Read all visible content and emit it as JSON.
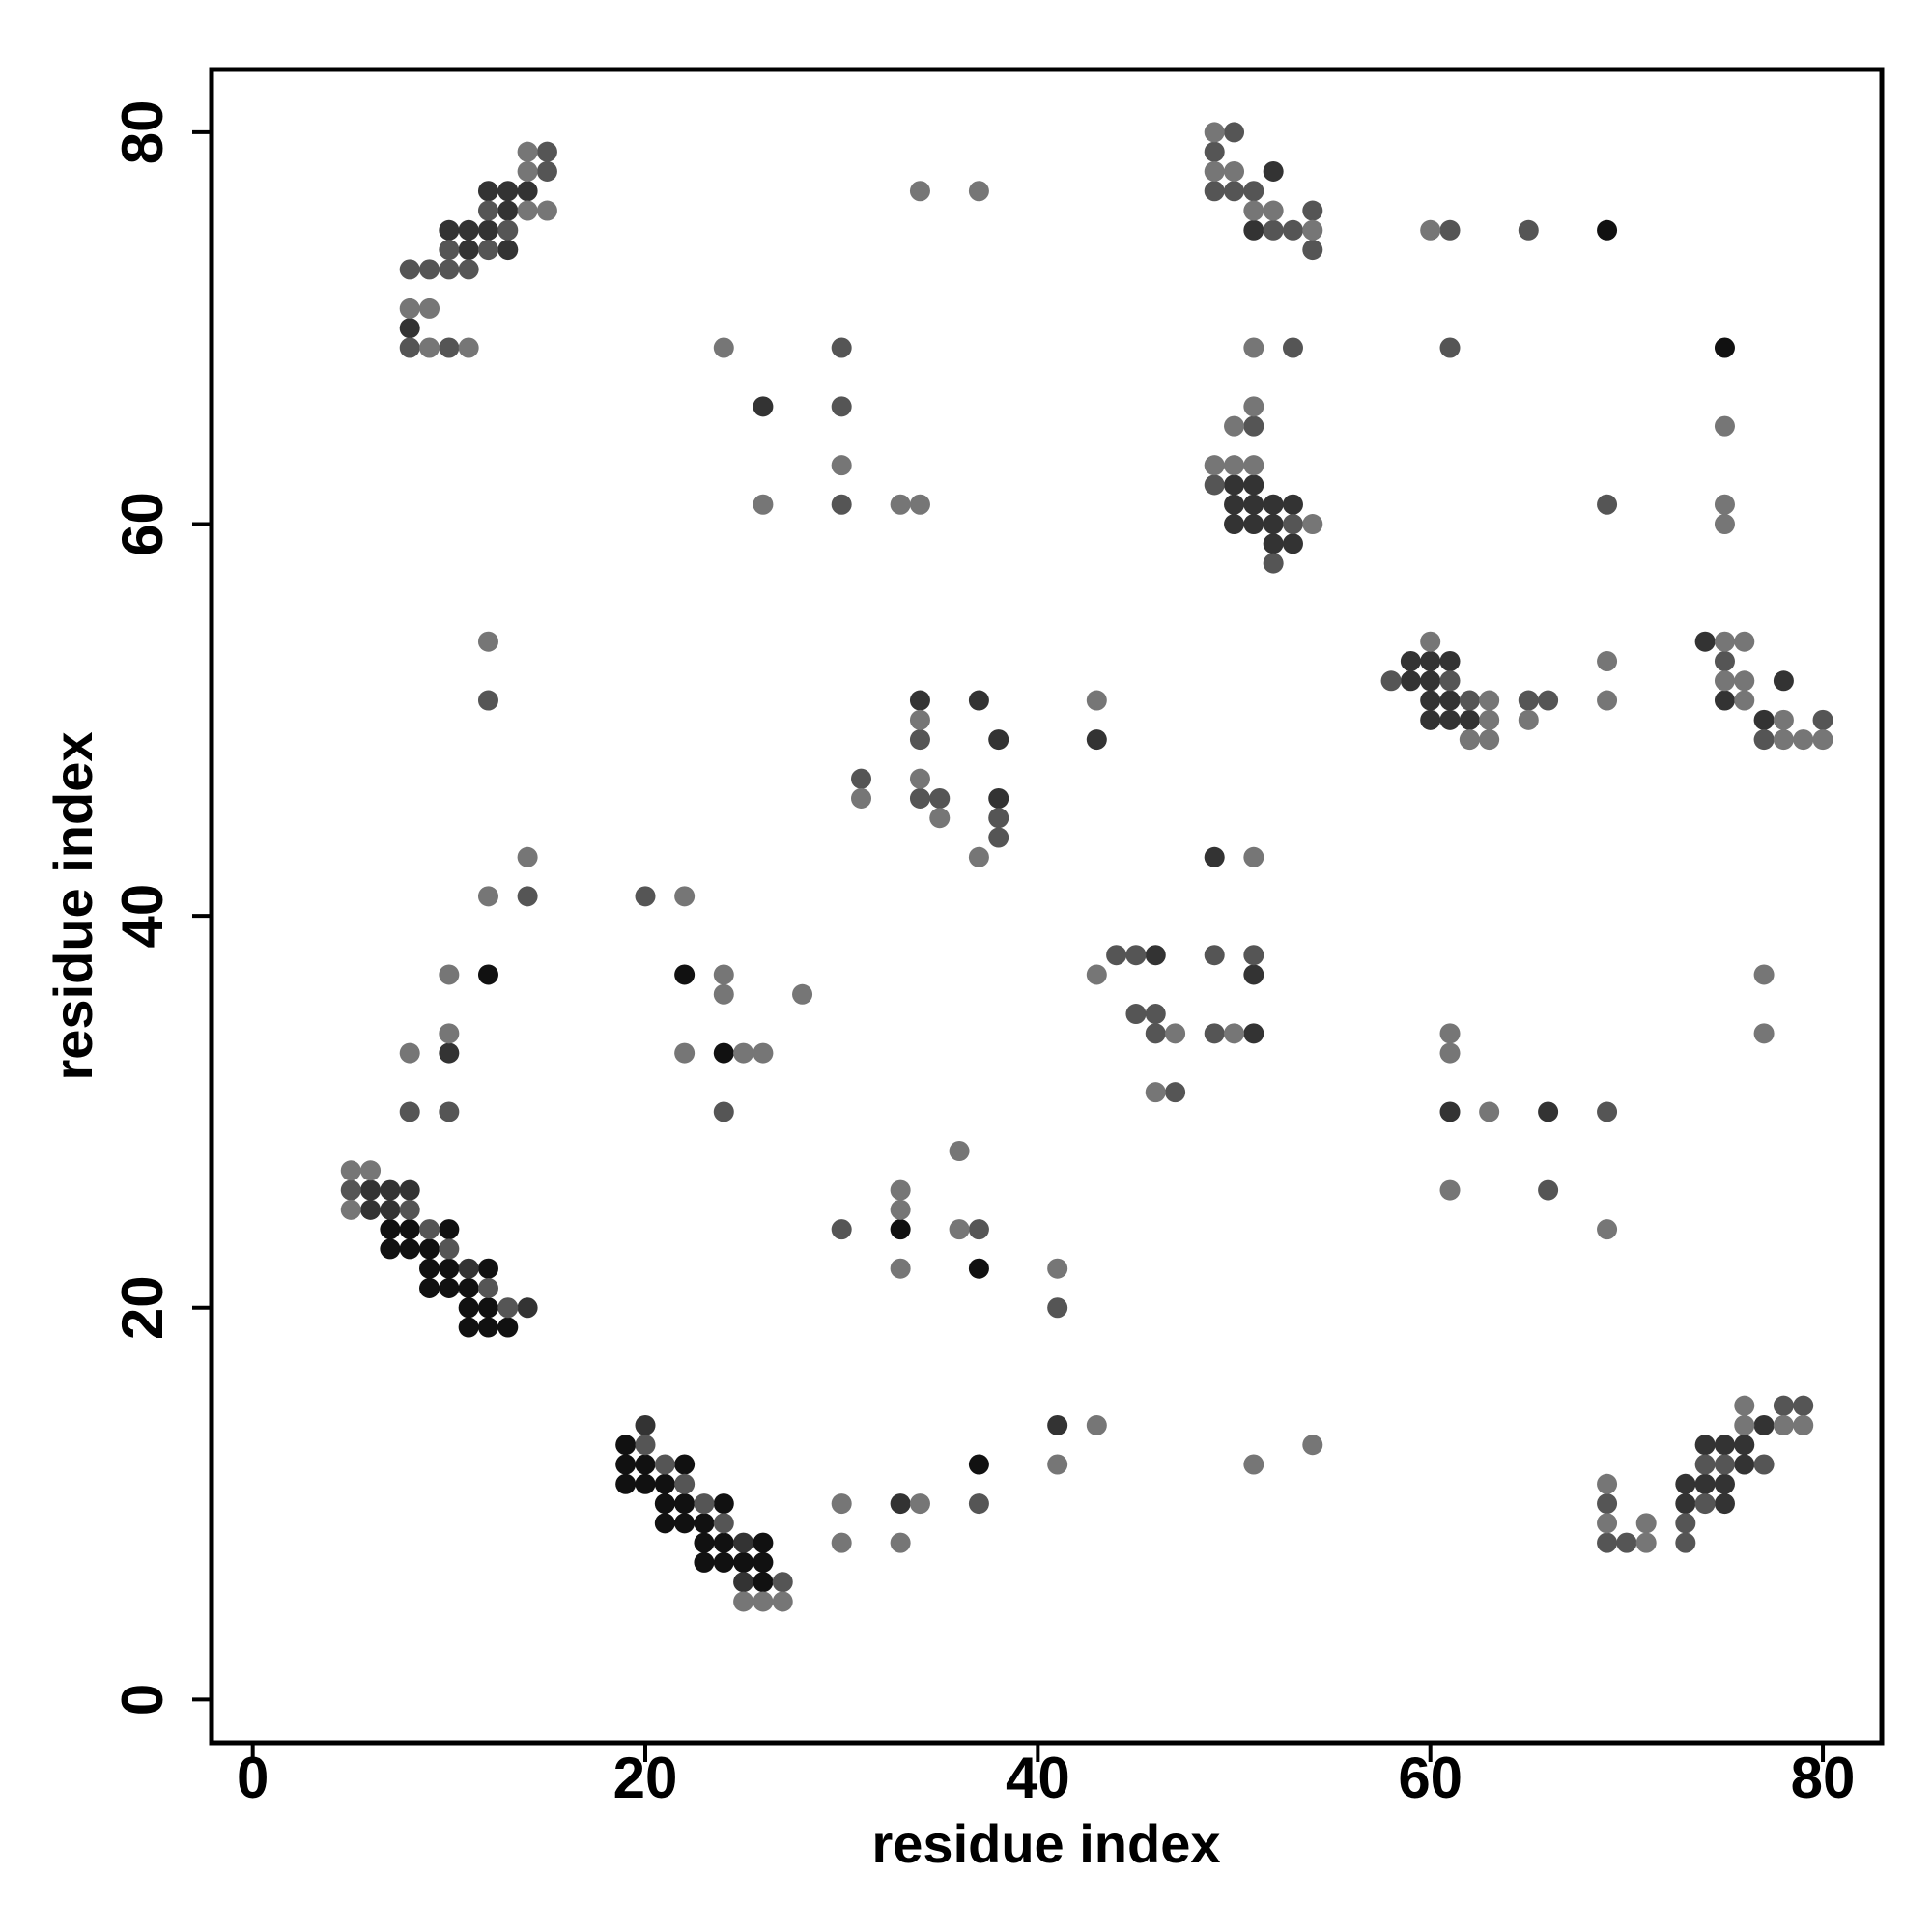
{
  "chart_data": {
    "type": "scatter",
    "x_label": "residue index",
    "y_label": "residue index",
    "xlim": [
      -2.1,
      83
    ],
    "ylim": [
      -2.2,
      83.2
    ],
    "xticks": [
      0,
      20,
      40,
      60,
      80
    ],
    "yticks": [
      0,
      20,
      40,
      60,
      80
    ],
    "grid": false,
    "series": [
      {
        "color": "#111111",
        "x": [
          69,
          75,
          12,
          22,
          24,
          33,
          37,
          37,
          7,
          8,
          10,
          7,
          8,
          9,
          9,
          10,
          12,
          9,
          10,
          11,
          11,
          12,
          11,
          12,
          13,
          19,
          19,
          20,
          22,
          19,
          20,
          21,
          21,
          22,
          24,
          21,
          22,
          23,
          23,
          24,
          26,
          23,
          24,
          25,
          26,
          26
        ],
        "y": [
          75,
          69,
          37,
          37,
          33,
          24,
          22,
          12,
          24,
          24,
          24,
          23,
          23,
          23,
          22,
          22,
          22,
          21,
          21,
          21,
          20,
          20,
          19,
          19,
          19,
          13,
          12,
          12,
          12,
          11,
          11,
          11,
          10,
          10,
          10,
          9,
          9,
          9,
          8,
          8,
          8,
          7,
          7,
          7,
          7,
          6
        ]
      },
      {
        "color": "#333333",
        "x": [
          10,
          11,
          12,
          11,
          13,
          12,
          13,
          14,
          13,
          8,
          52,
          51,
          50,
          51,
          50,
          51,
          52,
          53,
          50,
          51,
          52,
          52,
          53,
          59,
          60,
          61,
          59,
          60,
          60,
          61,
          60,
          61,
          62,
          74,
          78,
          75,
          77,
          26,
          34,
          37,
          38,
          43,
          38,
          49,
          46,
          51,
          51,
          33,
          10,
          61,
          66,
          6,
          7,
          8,
          6,
          7,
          11,
          14,
          20,
          25,
          25,
          41,
          77,
          74,
          75,
          76,
          76,
          73,
          74,
          75,
          73,
          75
        ],
        "y": [
          75,
          75,
          75,
          74,
          74,
          77,
          77,
          77,
          76,
          70,
          78,
          75,
          62,
          62,
          61,
          61,
          61,
          61,
          60,
          60,
          60,
          59,
          59,
          53,
          53,
          53,
          52,
          52,
          51,
          51,
          50,
          50,
          50,
          54,
          52,
          51,
          50,
          66,
          51,
          51,
          49,
          49,
          46,
          43,
          38,
          37,
          34,
          10,
          33,
          30,
          30,
          26,
          26,
          26,
          25,
          25,
          22,
          20,
          14,
          8,
          6,
          14,
          14,
          13,
          13,
          13,
          12,
          11,
          11,
          11,
          10,
          10
        ]
      },
      {
        "color": "#555555",
        "x": [
          8,
          9,
          10,
          11,
          10,
          12,
          13,
          12,
          15,
          15,
          8,
          10,
          50,
          49,
          49,
          50,
          51,
          54,
          52,
          53,
          54,
          61,
          65,
          61,
          53,
          30,
          30,
          30,
          69,
          51,
          49,
          53,
          52,
          58,
          61,
          62,
          65,
          66,
          75,
          77,
          80,
          34,
          31,
          34,
          35,
          38,
          38,
          12,
          14,
          20,
          44,
          45,
          49,
          51,
          45,
          46,
          46,
          49,
          47,
          8,
          10,
          24,
          69,
          66,
          30,
          37,
          41,
          5,
          8,
          9,
          10,
          12,
          13,
          20,
          21,
          22,
          23,
          24,
          27,
          37,
          78,
          79,
          74,
          75,
          77,
          69,
          74,
          73,
          69,
          70,
          73
        ],
        "y": [
          73,
          73,
          73,
          73,
          74,
          74,
          75,
          76,
          78,
          79,
          69,
          69,
          80,
          79,
          77,
          77,
          77,
          76,
          75,
          75,
          74,
          75,
          75,
          69,
          69,
          69,
          66,
          61,
          61,
          65,
          62,
          60,
          58,
          52,
          52,
          51,
          51,
          51,
          53,
          49,
          50,
          49,
          47,
          46,
          46,
          45,
          44,
          51,
          41,
          41,
          38,
          38,
          38,
          38,
          35,
          35,
          34,
          34,
          31,
          30,
          30,
          30,
          30,
          26,
          24,
          24,
          20,
          26,
          25,
          24,
          23,
          21,
          20,
          13,
          12,
          11,
          10,
          9,
          6,
          10,
          15,
          15,
          12,
          12,
          12,
          10,
          10,
          9,
          8,
          8,
          8
        ]
      },
      {
        "color": "#767676",
        "x": [
          14,
          14,
          14,
          15,
          8,
          9,
          9,
          11,
          49,
          49,
          50,
          51,
          52,
          54,
          34,
          37,
          60,
          51,
          24,
          75,
          30,
          26,
          33,
          34,
          75,
          75,
          51,
          50,
          49,
          50,
          51,
          54,
          60,
          63,
          63,
          65,
          62,
          63,
          69,
          69,
          75,
          76,
          75,
          76,
          76,
          78,
          78,
          79,
          80,
          43,
          34,
          34,
          31,
          35,
          37,
          12,
          14,
          12,
          22,
          51,
          43,
          47,
          50,
          46,
          10,
          10,
          8,
          24,
          24,
          28,
          22,
          25,
          26,
          61,
          61,
          63,
          61,
          77,
          77,
          69,
          5,
          6,
          5,
          36,
          33,
          33,
          36,
          33,
          41,
          25,
          26,
          27,
          43,
          54,
          41,
          51,
          30,
          34,
          30,
          33,
          76,
          76,
          78,
          79,
          69,
          69,
          71,
          71
        ],
        "y": [
          79,
          78,
          76,
          76,
          71,
          71,
          69,
          69,
          80,
          78,
          78,
          76,
          76,
          75,
          77,
          77,
          75,
          69,
          69,
          65,
          63,
          61,
          61,
          61,
          61,
          60,
          66,
          65,
          63,
          63,
          63,
          60,
          54,
          51,
          50,
          50,
          49,
          49,
          53,
          51,
          54,
          54,
          52,
          52,
          51,
          50,
          49,
          49,
          49,
          51,
          50,
          47,
          46,
          45,
          43,
          54,
          43,
          41,
          41,
          43,
          37,
          34,
          34,
          31,
          37,
          34,
          33,
          37,
          36,
          36,
          33,
          33,
          33,
          34,
          33,
          30,
          26,
          37,
          34,
          24,
          27,
          27,
          25,
          28,
          26,
          25,
          24,
          22,
          22,
          5,
          5,
          5,
          14,
          13,
          12,
          12,
          10,
          10,
          8,
          8,
          15,
          14,
          14,
          14,
          11,
          9,
          9,
          8
        ]
      }
    ]
  }
}
